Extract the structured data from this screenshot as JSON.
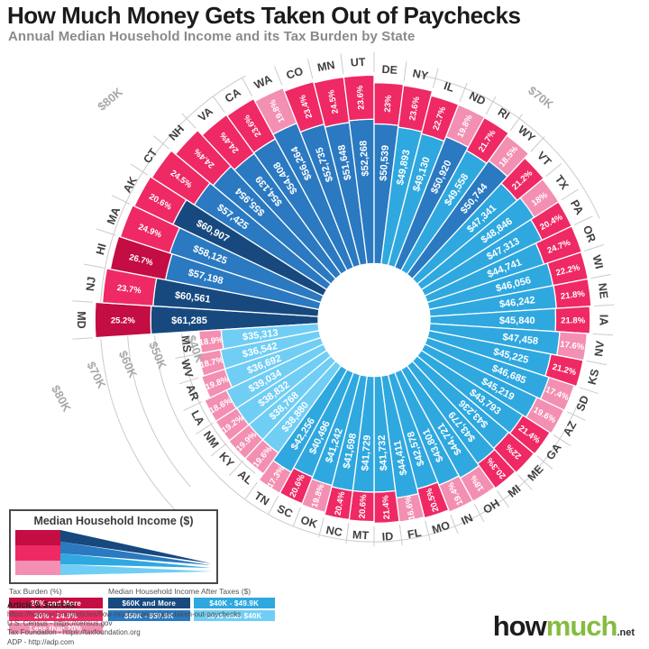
{
  "header": {
    "title": "How Much Money Gets Taken Out of Paychecks",
    "subtitle": "Annual Median Household Income and its Tax Burden by State"
  },
  "colors": {
    "tax_25_plus": "#c40d42",
    "tax_20_24": "#ee2964",
    "tax_under_20": "#f38fb2",
    "inc_60_plus": "#17497f",
    "inc_50_59": "#2a79c1",
    "inc_40_49": "#2fa8e0",
    "inc_under_40": "#70cef5",
    "grid_line": "#cbcbcb",
    "grid_text": "#a8a8a8",
    "rim_text": "#3f3f3f",
    "wedge_text": "#ffffff"
  },
  "chart_data": {
    "type": "bar",
    "variant": "radial-stacked",
    "title": "Annual Median Household Income and its Tax Burden by State",
    "gridlines": [
      {
        "label": "$40K",
        "value": 40000
      },
      {
        "label": "$50K",
        "value": 50000
      },
      {
        "label": "$60K",
        "value": 60000
      },
      {
        "label": "$70K",
        "value": 70000
      },
      {
        "label": "$80K",
        "value": 80000
      }
    ],
    "states": [
      {
        "code": "MD",
        "tax_pct": 25.2,
        "tax_label": "25.2%",
        "after_tax": 61285,
        "after_tax_label": "$61,285"
      },
      {
        "code": "NJ",
        "tax_pct": 23.7,
        "tax_label": "23.7%",
        "after_tax": 60561,
        "after_tax_label": "$60,561"
      },
      {
        "code": "HI",
        "tax_pct": 26.7,
        "tax_label": "26.7%",
        "after_tax": 57198,
        "after_tax_label": "$57,198"
      },
      {
        "code": "MA",
        "tax_pct": 24.9,
        "tax_label": "24.9%",
        "after_tax": 58125,
        "after_tax_label": "$58,125"
      },
      {
        "code": "AK",
        "tax_pct": 20.6,
        "tax_label": "20.6%",
        "after_tax": 60907,
        "after_tax_label": "$60,907"
      },
      {
        "code": "CT",
        "tax_pct": 24.5,
        "tax_label": "24.5%",
        "after_tax": 57425,
        "after_tax_label": "$57,425"
      },
      {
        "code": "NH",
        "tax_pct": 24.4,
        "tax_label": "24.4%",
        "after_tax": 55954,
        "after_tax_label": "$55,954"
      },
      {
        "code": "VA",
        "tax_pct": 24.4,
        "tax_label": "24.4%",
        "after_tax": 54139,
        "after_tax_label": "$54,139"
      },
      {
        "code": "CA",
        "tax_pct": 23.6,
        "tax_label": "23.6%",
        "after_tax": 54408,
        "after_tax_label": "$54,408"
      },
      {
        "code": "WA",
        "tax_pct": 19.8,
        "tax_label": "19.8%",
        "after_tax": 56264,
        "after_tax_label": "$56,264"
      },
      {
        "code": "CO",
        "tax_pct": 23.4,
        "tax_label": "23.4%",
        "after_tax": 52735,
        "after_tax_label": "$52,735"
      },
      {
        "code": "MN",
        "tax_pct": 24.5,
        "tax_label": "24.5%",
        "after_tax": 51648,
        "after_tax_label": "$51,648"
      },
      {
        "code": "UT",
        "tax_pct": 23.6,
        "tax_label": "23.6%",
        "after_tax": 52268,
        "after_tax_label": "$52,268"
      },
      {
        "code": "DE",
        "tax_pct": 23.0,
        "tax_label": "23%",
        "after_tax": 50539,
        "after_tax_label": "$50,539"
      },
      {
        "code": "NY",
        "tax_pct": 23.6,
        "tax_label": "23.6%",
        "after_tax": 49893,
        "after_tax_label": "$49,893"
      },
      {
        "code": "IL",
        "tax_pct": 22.7,
        "tax_label": "22.7%",
        "after_tax": 49130,
        "after_tax_label": "$49,130"
      },
      {
        "code": "ND",
        "tax_pct": 19.8,
        "tax_label": "19.8%",
        "after_tax": 50920,
        "after_tax_label": "$50,920"
      },
      {
        "code": "RI",
        "tax_pct": 21.7,
        "tax_label": "21.7%",
        "after_tax": 49558,
        "after_tax_label": "$49,558"
      },
      {
        "code": "WY",
        "tax_pct": 18.5,
        "tax_label": "18.5%",
        "after_tax": 50744,
        "after_tax_label": "$50,744"
      },
      {
        "code": "VT",
        "tax_pct": 21.2,
        "tax_label": "21.2%",
        "after_tax": 47341,
        "after_tax_label": "$47,341"
      },
      {
        "code": "TX",
        "tax_pct": 18.0,
        "tax_label": "18%",
        "after_tax": 48846,
        "after_tax_label": "$48,846"
      },
      {
        "code": "PA",
        "tax_pct": 20.4,
        "tax_label": "20.4%",
        "after_tax": 47313,
        "after_tax_label": "$47,313"
      },
      {
        "code": "OR",
        "tax_pct": 24.7,
        "tax_label": "24.7%",
        "after_tax": 44741,
        "after_tax_label": "$44,741"
      },
      {
        "code": "WI",
        "tax_pct": 22.2,
        "tax_label": "22.2%",
        "after_tax": 46056,
        "after_tax_label": "$46,056"
      },
      {
        "code": "NE",
        "tax_pct": 21.8,
        "tax_label": "21.8%",
        "after_tax": 46242,
        "after_tax_label": "$46,242"
      },
      {
        "code": "IA",
        "tax_pct": 21.8,
        "tax_label": "21.8%",
        "after_tax": 45840,
        "after_tax_label": "$45,840"
      },
      {
        "code": "NV",
        "tax_pct": 17.6,
        "tax_label": "17.6%",
        "after_tax": 47458,
        "after_tax_label": "$47,458"
      },
      {
        "code": "KS",
        "tax_pct": 21.2,
        "tax_label": "21.2%",
        "after_tax": 45225,
        "after_tax_label": "$45,225"
      },
      {
        "code": "SD",
        "tax_pct": 17.4,
        "tax_label": "17.4%",
        "after_tax": 46685,
        "after_tax_label": "$46,685"
      },
      {
        "code": "AZ",
        "tax_pct": 19.6,
        "tax_label": "19.6%",
        "after_tax": 45219,
        "after_tax_label": "$45,219"
      },
      {
        "code": "GA",
        "tax_pct": 21.4,
        "tax_label": "21.4%",
        "after_tax": 43793,
        "after_tax_label": "$43,793"
      },
      {
        "code": "ME",
        "tax_pct": 22.0,
        "tax_label": "22%",
        "after_tax": 43236,
        "after_tax_label": "$43,236"
      },
      {
        "code": "MI",
        "tax_pct": 20.3,
        "tax_label": "20.3%",
        "after_tax": 43779,
        "after_tax_label": "$43,779"
      },
      {
        "code": "OH",
        "tax_pct": 18.0,
        "tax_label": "18%",
        "after_tax": 44721,
        "after_tax_label": "$44,721"
      },
      {
        "code": "IN",
        "tax_pct": 19.4,
        "tax_label": "19.4%",
        "after_tax": 43801,
        "after_tax_label": "$43,801"
      },
      {
        "code": "MO",
        "tax_pct": 20.5,
        "tax_label": "20.5%",
        "after_tax": 42578,
        "after_tax_label": "$42,578"
      },
      {
        "code": "FL",
        "tax_pct": 16.6,
        "tax_label": "16.6%",
        "after_tax": 44411,
        "after_tax_label": "$44,411"
      },
      {
        "code": "ID",
        "tax_pct": 21.4,
        "tax_label": "21.4%",
        "after_tax": 41732,
        "after_tax_label": "$41,732"
      },
      {
        "code": "MT",
        "tax_pct": 20.6,
        "tax_label": "20.6%",
        "after_tax": 41729,
        "after_tax_label": "$41,729"
      },
      {
        "code": "NC",
        "tax_pct": 20.4,
        "tax_label": "20.4%",
        "after_tax": 41698,
        "after_tax_label": "$41,698"
      },
      {
        "code": "OK",
        "tax_pct": 19.8,
        "tax_label": "19.8%",
        "after_tax": 41242,
        "after_tax_label": "$41,242"
      },
      {
        "code": "SC",
        "tax_pct": 20.6,
        "tax_label": "20.6%",
        "after_tax": 40496,
        "after_tax_label": "$40,496"
      },
      {
        "code": "TN",
        "tax_pct": 17.3,
        "tax_label": "17.3%",
        "after_tax": 42256,
        "after_tax_label": "$42,256"
      },
      {
        "code": "AL",
        "tax_pct": 19.6,
        "tax_label": "19.6%",
        "after_tax": 38880,
        "after_tax_label": "$38,880"
      },
      {
        "code": "KY",
        "tax_pct": 19.9,
        "tax_label": "19.9%",
        "after_tax": 38768,
        "after_tax_label": "$38,768"
      },
      {
        "code": "NM",
        "tax_pct": 19.2,
        "tax_label": "19.2%",
        "after_tax": 38832,
        "after_tax_label": "$38,832"
      },
      {
        "code": "LA",
        "tax_pct": 18.6,
        "tax_label": "18.6%",
        "after_tax": 39034,
        "after_tax_label": "$39,034"
      },
      {
        "code": "AR",
        "tax_pct": 19.8,
        "tax_label": "19.8%",
        "after_tax": 36692,
        "after_tax_label": "$36,692"
      },
      {
        "code": "WV",
        "tax_pct": 18.7,
        "tax_label": "18.7%",
        "after_tax": 36542,
        "after_tax_label": "$36,542"
      },
      {
        "code": "MS",
        "tax_pct": 18.9,
        "tax_label": "18.9%",
        "after_tax": 35313,
        "after_tax_label": "$35,313"
      }
    ]
  },
  "legend": {
    "box_title": "Median Household Income ($)",
    "tax_title": "Tax Burden (%)",
    "tax_items": [
      "25% and More",
      "20% - 24.9%",
      "Less than 20%"
    ],
    "income_title": "Median Household Income After Taxes ($)",
    "income_items": [
      "$60K and More",
      "$40K - $49.9K",
      "$50K - $59.9K",
      "Less than $40K"
    ]
  },
  "sources": {
    "heading": "Article & Sources:",
    "lines": [
      "https://howmuch.net/articles/how-much-money-gets-taken-out-paychecks",
      "U.S. Census - https://census.gov",
      "Tax Foundation - https://taxfoundation.org",
      "ADP - http://adp.com"
    ]
  },
  "logo": {
    "how": "how",
    "much": "much",
    "net": ".net"
  }
}
